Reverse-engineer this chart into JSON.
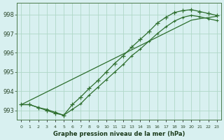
{
  "title": "Graphe pression niveau de la mer (hPa)",
  "background_color": "#d8f0f0",
  "grid_color": "#b0d8c8",
  "line_color": "#2d6e2d",
  "x_labels": [
    "0",
    "1",
    "2",
    "3",
    "4",
    "5",
    "6",
    "7",
    "8",
    "9",
    "10",
    "11",
    "12",
    "13",
    "14",
    "15",
    "16",
    "17",
    "18",
    "19",
    "20",
    "21",
    "22",
    "23"
  ],
  "ylim": [
    992.5,
    998.6
  ],
  "yticks": [
    993,
    994,
    995,
    996,
    997,
    998
  ],
  "line1": [
    993.3,
    993.3,
    993.15,
    993.0,
    992.85,
    992.75,
    993.3,
    993.7,
    994.15,
    994.55,
    995.0,
    995.45,
    995.85,
    996.3,
    996.7,
    997.1,
    997.55,
    997.85,
    998.1,
    998.2,
    998.25,
    998.15,
    998.05,
    997.95
  ],
  "line2": [
    993.3,
    993.3,
    993.15,
    993.05,
    992.9,
    992.75,
    993.05,
    993.35,
    993.8,
    994.2,
    994.6,
    995.0,
    995.4,
    995.85,
    996.2,
    996.6,
    997.0,
    997.35,
    997.65,
    997.85,
    997.95,
    997.88,
    997.78,
    997.68
  ],
  "line_straight": [
    993.3,
    993.52,
    993.74,
    993.96,
    994.18,
    994.4,
    994.62,
    994.84,
    995.06,
    995.28,
    995.5,
    995.72,
    995.94,
    996.16,
    996.38,
    996.6,
    996.82,
    997.04,
    997.26,
    997.48,
    997.7,
    997.78,
    997.84,
    997.9
  ]
}
